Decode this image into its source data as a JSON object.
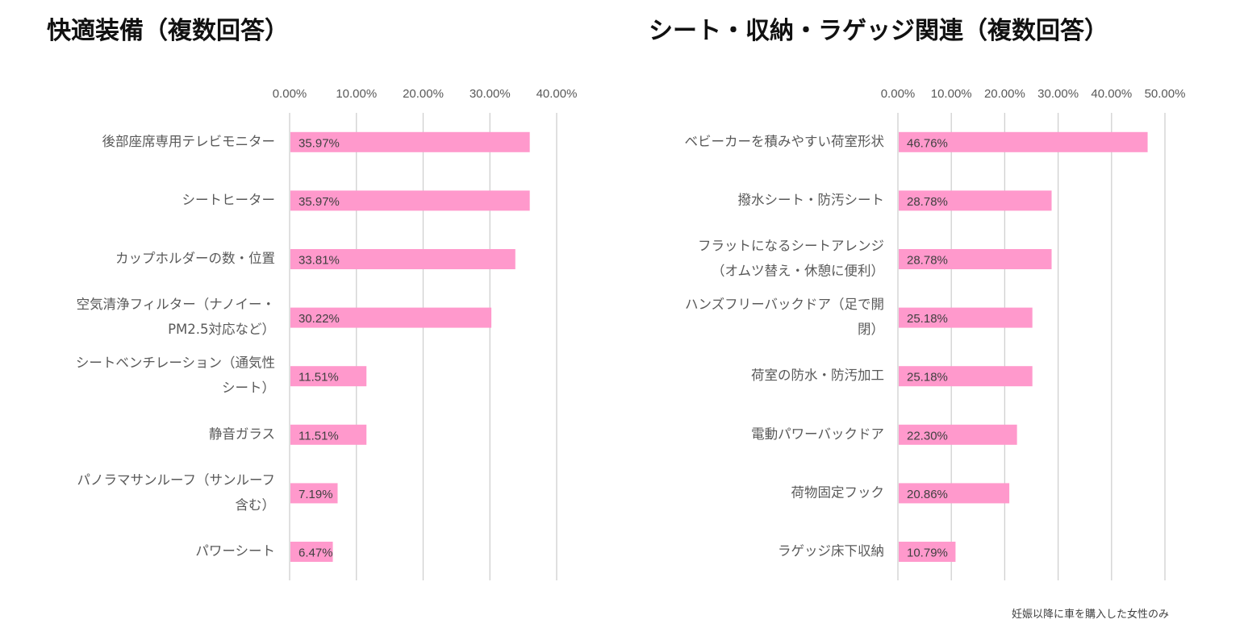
{
  "chart_data": [
    {
      "type": "bar",
      "orientation": "horizontal",
      "title": "快適装備（複数回答）",
      "categories": [
        "後部座席専用テレビモニター",
        "シートヒーター",
        "カップホルダーの数・位置",
        [
          "空気清浄フィルター（ナノイー・",
          "PM2.5対応など）"
        ],
        [
          "シートベンチレーション（通気性",
          "シート）"
        ],
        "静音ガラス",
        [
          "パノラマサンルーフ（サンルーフ",
          "含む）"
        ],
        "パワーシート"
      ],
      "values": [
        35.97,
        35.97,
        33.81,
        30.22,
        11.51,
        11.51,
        7.19,
        6.47
      ],
      "data_labels": [
        "35.97%",
        "35.97%",
        "33.81%",
        "30.22%",
        "11.51%",
        "11.51%",
        "7.19%",
        "6.47%"
      ],
      "xticks": [
        "0.00%",
        "10.00%",
        "20.00%",
        "30.00%",
        "40.00%"
      ],
      "xlim": [
        0,
        40
      ],
      "bar_color": "#ff99cc",
      "grid": true,
      "axis_position": "top"
    },
    {
      "type": "bar",
      "orientation": "horizontal",
      "title": "シート・収納・ラゲッジ関連（複数回答）",
      "categories": [
        "ベビーカーを積みやすい荷室形状",
        "撥水シート・防汚シート",
        [
          "フラットになるシートアレンジ",
          "（オムツ替え・休憩に便利）"
        ],
        [
          "ハンズフリーバックドア（足で開",
          "閉）"
        ],
        "荷室の防水・防汚加工",
        "電動パワーバックドア",
        "荷物固定フック",
        "ラゲッジ床下収納"
      ],
      "values": [
        46.76,
        28.78,
        28.78,
        25.18,
        25.18,
        22.3,
        20.86,
        10.79
      ],
      "data_labels": [
        "46.76%",
        "28.78%",
        "28.78%",
        "25.18%",
        "25.18%",
        "22.30%",
        "20.86%",
        "10.79%"
      ],
      "xticks": [
        "0.00%",
        "10.00%",
        "20.00%",
        "30.00%",
        "40.00%",
        "50.00%"
      ],
      "xlim": [
        0,
        50
      ],
      "bar_color": "#ff99cc",
      "grid": true,
      "axis_position": "top"
    }
  ],
  "footnote": "妊娠以降に車を購入した女性のみ"
}
